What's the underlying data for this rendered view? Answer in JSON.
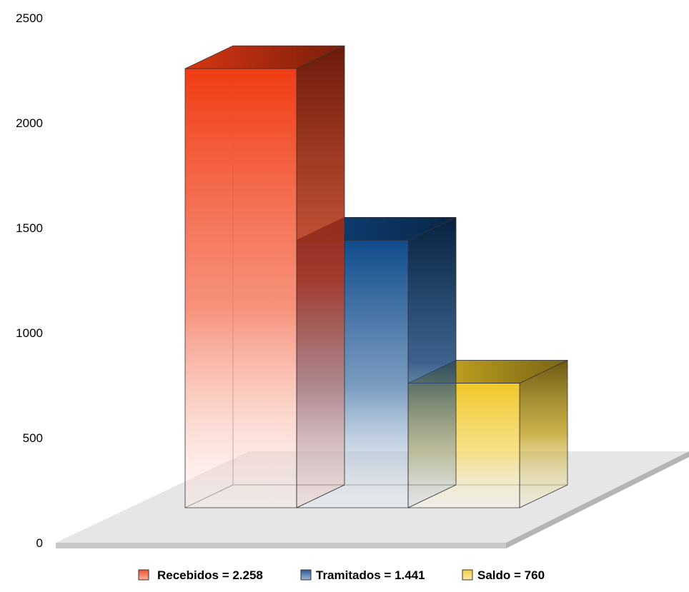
{
  "chart_data": {
    "type": "bar",
    "style": "3d",
    "categories": [
      "Recebidos = 2.258",
      "Tramitados = 1.441",
      "Saldo = 760"
    ],
    "values": [
      2258,
      1441,
      760
    ],
    "colors": [
      "#f03c14",
      "#0f4b8c",
      "#f0c828"
    ],
    "ylim": [
      0,
      2500
    ],
    "yticks": [
      "0",
      "500",
      "1000",
      "1500",
      "2000",
      "2500"
    ],
    "grid": false,
    "legend": {
      "position": "bottom",
      "entries": [
        "Recebidos = 2.258",
        "Tramitados = 1.441",
        "Saldo = 760"
      ]
    }
  }
}
